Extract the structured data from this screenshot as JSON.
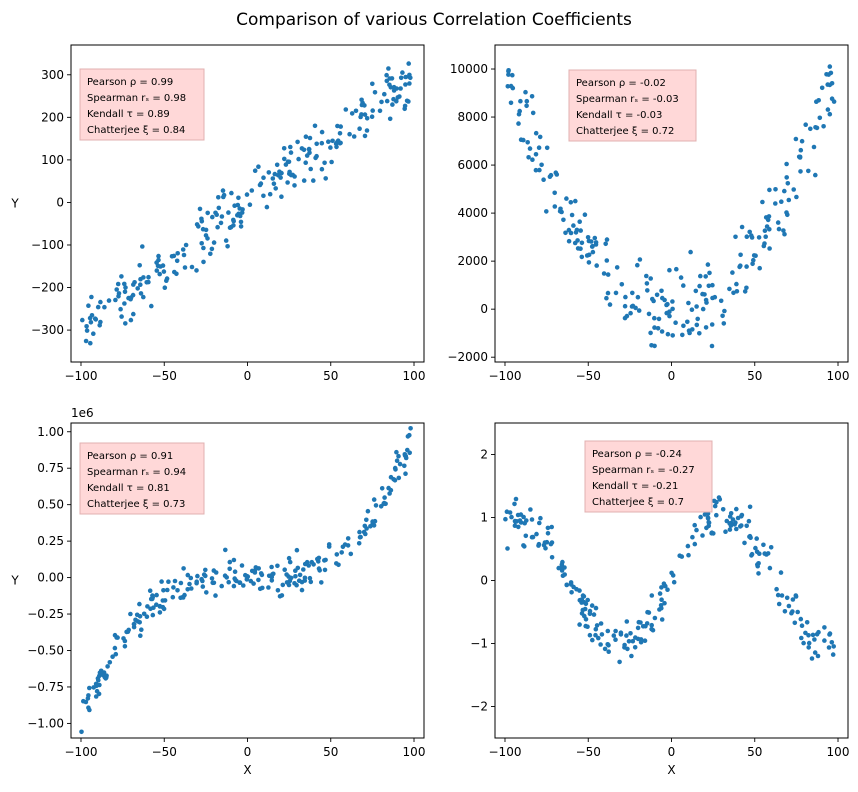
{
  "title": "Comparison of various Correlation Coefficients",
  "colors": {
    "points": "#1f77b4",
    "box_fill": "#ffd8d8",
    "box_stroke": "#e0b0b0"
  },
  "chart_data": [
    {
      "type": "scatter",
      "xlabel": "",
      "ylabel": "Y",
      "xlim": [
        -106,
        106
      ],
      "ylim": [
        -375,
        370
      ],
      "xticks": [
        -100,
        -50,
        0,
        50,
        100
      ],
      "xtick_labels": [
        "−100",
        "−50",
        "0",
        "50",
        "100"
      ],
      "yticks": [
        -300,
        -200,
        -100,
        0,
        100,
        200,
        300
      ],
      "ytick_labels": [
        "−300",
        "−200",
        "−100",
        "0",
        "100",
        "200",
        "300"
      ],
      "offset_text": "",
      "annotation": [
        "Pearson ρ = 0.99",
        "Spearman rₛ = 0.98",
        "Kendall τ = 0.89",
        "Chatterjee ξ = 0.84"
      ],
      "model": {
        "kind": "linear",
        "a": 3,
        "b": 0
      },
      "noise": 32
    },
    {
      "type": "scatter",
      "xlabel": "",
      "ylabel": "",
      "xlim": [
        -106,
        106
      ],
      "ylim": [
        -2200,
        11000
      ],
      "xticks": [
        -100,
        -50,
        0,
        50,
        100
      ],
      "xtick_labels": [
        "−100",
        "−50",
        "0",
        "50",
        "100"
      ],
      "yticks": [
        -2000,
        0,
        2000,
        4000,
        6000,
        8000,
        10000
      ],
      "ytick_labels": [
        "−2000",
        "0",
        "2000",
        "4000",
        "6000",
        "8000",
        "10000"
      ],
      "offset_text": "",
      "annotation": [
        "Pearson ρ = -0.02",
        "Spearman rₛ = -0.03",
        "Kendall τ = -0.03",
        "Chatterjee ξ = 0.72"
      ],
      "model": {
        "kind": "quadratic",
        "a": 1,
        "b": 0
      },
      "noise": 900
    },
    {
      "type": "scatter",
      "xlabel": "X",
      "ylabel": "Y",
      "xlim": [
        -106,
        106
      ],
      "ylim": [
        -1.1,
        1.06
      ],
      "xticks": [
        -100,
        -50,
        0,
        50,
        100
      ],
      "xtick_labels": [
        "−100",
        "−50",
        "0",
        "50",
        "100"
      ],
      "yticks": [
        -1.0,
        -0.75,
        -0.5,
        -0.25,
        0.0,
        0.25,
        0.5,
        0.75,
        1.0
      ],
      "ytick_labels": [
        "−1.00",
        "−0.75",
        "−0.50",
        "−0.25",
        "0.00",
        "0.25",
        "0.50",
        "0.75",
        "1.00"
      ],
      "offset_text": "1e6",
      "annotation": [
        "Pearson ρ = 0.91",
        "Spearman rₛ = 0.94",
        "Kendall τ = 0.81",
        "Chatterjee ξ = 0.73"
      ],
      "model": {
        "kind": "cubic",
        "a": 1e-06,
        "b": 0
      },
      "noise": 0.06
    },
    {
      "type": "scatter",
      "xlabel": "X",
      "ylabel": "",
      "xlim": [
        -106,
        106
      ],
      "ylim": [
        -2.5,
        2.5
      ],
      "xticks": [
        -100,
        -50,
        0,
        50,
        100
      ],
      "xtick_labels": [
        "−100",
        "−50",
        "0",
        "50",
        "100"
      ],
      "yticks": [
        -2,
        -1,
        0,
        1,
        2
      ],
      "ytick_labels": [
        "−2",
        "−1",
        "0",
        "1",
        "2"
      ],
      "offset_text": "",
      "annotation": [
        "Pearson ρ = -0.24",
        "Spearman rₛ = -0.27",
        "Kendall τ = -0.21",
        "Chatterjee ξ = 0.7"
      ],
      "model": {
        "kind": "sine",
        "a": 1,
        "b": 0.05
      },
      "noise": 0.17
    }
  ]
}
